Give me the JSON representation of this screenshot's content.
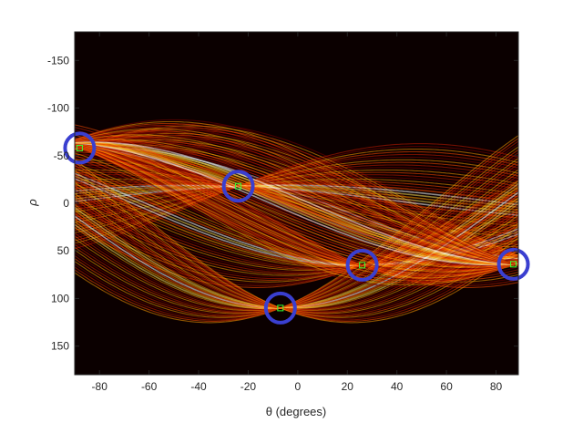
{
  "chart_data": {
    "type": "heatmap",
    "title": "",
    "xlabel": "θ (degrees)",
    "ylabel": "ρ",
    "xlim": [
      -90,
      89
    ],
    "ylim": [
      -180,
      180
    ],
    "y_reversed": true,
    "colormap": "hot",
    "background_color": "#0b0000",
    "x_ticks": [
      -80,
      -60,
      -40,
      -20,
      0,
      20,
      40,
      60,
      80
    ],
    "y_ticks": [
      -150,
      -100,
      -50,
      0,
      50,
      100,
      150
    ],
    "peaks": [
      {
        "theta": -88,
        "rho": -58
      },
      {
        "theta": -24,
        "rho": -18
      },
      {
        "theta": 26,
        "rho": 65
      },
      {
        "theta": -7,
        "rho": 110
      },
      {
        "theta": 87,
        "rho": 64
      }
    ],
    "peak_marker_color": "#3a3fd0",
    "peak_square_color": "#33ff33",
    "curve_colors": [
      "#7a0000",
      "#c41a00",
      "#ff4a00",
      "#ff9a00",
      "#ffe05a",
      "#ffffff"
    ]
  }
}
